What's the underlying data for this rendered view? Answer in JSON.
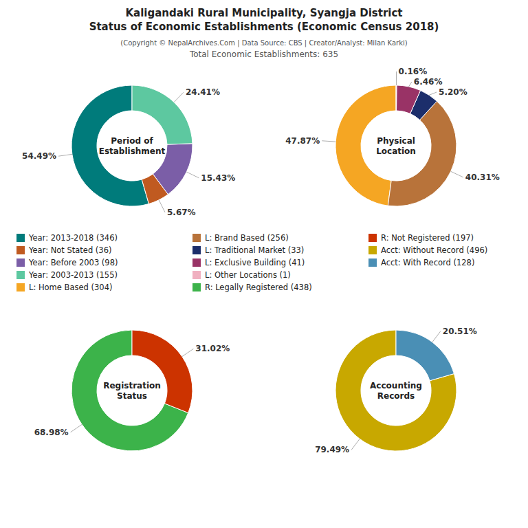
{
  "title": [
    "Kaligandaki Rural Municipality, Syangja District",
    "Status of Economic Establishments (Economic Census 2018)"
  ],
  "subtitle": [
    "(Copyright © NepalArchives.Com | Data Source: CBS | Creator/Analyst: Milan Karki)",
    "Total Economic Establishments: 635"
  ],
  "chart_data": [
    {
      "type": "pie",
      "title": "Period of\nEstablishment",
      "categories": [
        "Year: 2013-2018 (346)",
        "Year: Not Stated (36)",
        "Year: Before 2003 (98)",
        "Year: 2003-2013 (155)"
      ],
      "values": [
        54.49,
        5.67,
        15.43,
        24.41
      ],
      "value_labels": [
        "54.49%",
        "5.67%",
        "15.43%",
        "24.41%"
      ],
      "colors": [
        "#007B7B",
        "#C05A20",
        "#7B5EA7",
        "#5DC8A0"
      ],
      "data_labels": true,
      "legend": "center"
    },
    {
      "type": "pie",
      "title": "Physical\nLocation",
      "categories": [
        "L: Home Based (304)",
        "L: Brand Based (256)",
        "L: Traditional Market (33)",
        "L: Exclusive Building (41)",
        "L: Other Locations (1)"
      ],
      "values": [
        47.87,
        40.31,
        5.2,
        6.46,
        0.16
      ],
      "value_labels": [
        "47.87%",
        "40.31%",
        "5.20%",
        "6.46%",
        "0.16%"
      ],
      "colors": [
        "#F5A623",
        "#B8733A",
        "#1C2E6B",
        "#993366",
        "#F0B0C0"
      ],
      "data_labels": true,
      "legend": "center"
    },
    {
      "type": "pie",
      "title": "Registration\nStatus",
      "categories": [
        "R: Legally Registered (438)",
        "R: Not Registered (197)"
      ],
      "values": [
        68.98,
        31.02
      ],
      "value_labels": [
        "68.98%",
        "31.02%"
      ],
      "colors": [
        "#3CB34A",
        "#CC3300"
      ],
      "data_labels": true,
      "legend": "center"
    },
    {
      "type": "pie",
      "title": "Accounting\nRecords",
      "categories": [
        "Acct: Without Record (496)",
        "Acct: With Record (128)"
      ],
      "values": [
        79.49,
        20.51
      ],
      "value_labels": [
        "79.49%",
        "20.51%"
      ],
      "colors": [
        "#C8A800",
        "#4A8FB5"
      ],
      "data_labels": true,
      "legend": "center"
    }
  ]
}
